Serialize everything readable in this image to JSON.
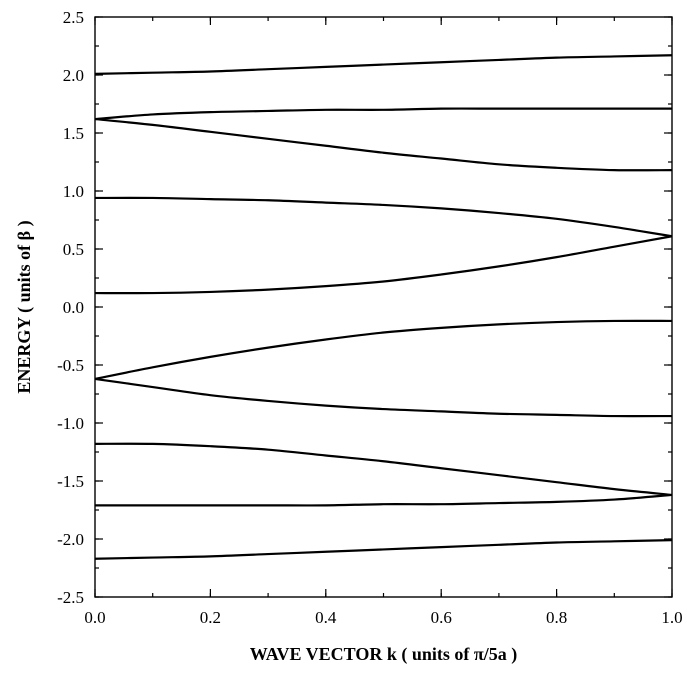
{
  "chart_data": {
    "type": "line",
    "title": "",
    "xlabel": "WAVE VECTOR k ( units of π/5a )",
    "ylabel": "ENERGY ( units of β )",
    "xlim": [
      0.0,
      1.0
    ],
    "ylim": [
      -2.5,
      2.5
    ],
    "xticks": [
      "0.0",
      "0.2",
      "0.4",
      "0.6",
      "0.8",
      "1.0"
    ],
    "yticks": [
      "2.5",
      "2.0",
      "1.5",
      "1.0",
      "0.5",
      "0.0",
      "-0.5",
      "-1.0",
      "-1.5",
      "-2.0",
      "-2.5"
    ],
    "grid": false,
    "legend": false,
    "x": [
      0.0,
      0.1,
      0.2,
      0.3,
      0.4,
      0.5,
      0.6,
      0.7,
      0.8,
      0.9,
      1.0
    ],
    "series": [
      {
        "values": [
          2.01,
          2.02,
          2.03,
          2.05,
          2.07,
          2.09,
          2.11,
          2.13,
          2.15,
          2.16,
          2.17
        ]
      },
      {
        "values": [
          1.62,
          1.66,
          1.68,
          1.69,
          1.7,
          1.7,
          1.71,
          1.71,
          1.71,
          1.71,
          1.71
        ]
      },
      {
        "values": [
          1.62,
          1.57,
          1.51,
          1.45,
          1.39,
          1.33,
          1.28,
          1.23,
          1.2,
          1.18,
          1.18
        ]
      },
      {
        "values": [
          0.94,
          0.94,
          0.93,
          0.92,
          0.9,
          0.88,
          0.85,
          0.81,
          0.76,
          0.69,
          0.61
        ]
      },
      {
        "values": [
          0.12,
          0.12,
          0.13,
          0.15,
          0.18,
          0.22,
          0.28,
          0.35,
          0.43,
          0.52,
          0.61
        ]
      },
      {
        "values": [
          -0.62,
          -0.52,
          -0.43,
          -0.35,
          -0.28,
          -0.22,
          -0.18,
          -0.15,
          -0.13,
          -0.12,
          -0.12
        ]
      },
      {
        "values": [
          -0.62,
          -0.69,
          -0.76,
          -0.81,
          -0.85,
          -0.88,
          -0.9,
          -0.92,
          -0.93,
          -0.94,
          -0.94
        ]
      },
      {
        "values": [
          -1.18,
          -1.18,
          -1.2,
          -1.23,
          -1.28,
          -1.33,
          -1.39,
          -1.45,
          -1.51,
          -1.57,
          -1.62
        ]
      },
      {
        "values": [
          -1.71,
          -1.71,
          -1.71,
          -1.71,
          -1.71,
          -1.7,
          -1.7,
          -1.69,
          -1.68,
          -1.66,
          -1.62
        ]
      },
      {
        "values": [
          -2.17,
          -2.16,
          -2.15,
          -2.13,
          -2.11,
          -2.09,
          -2.07,
          -2.05,
          -2.03,
          -2.02,
          -2.01
        ]
      }
    ]
  }
}
